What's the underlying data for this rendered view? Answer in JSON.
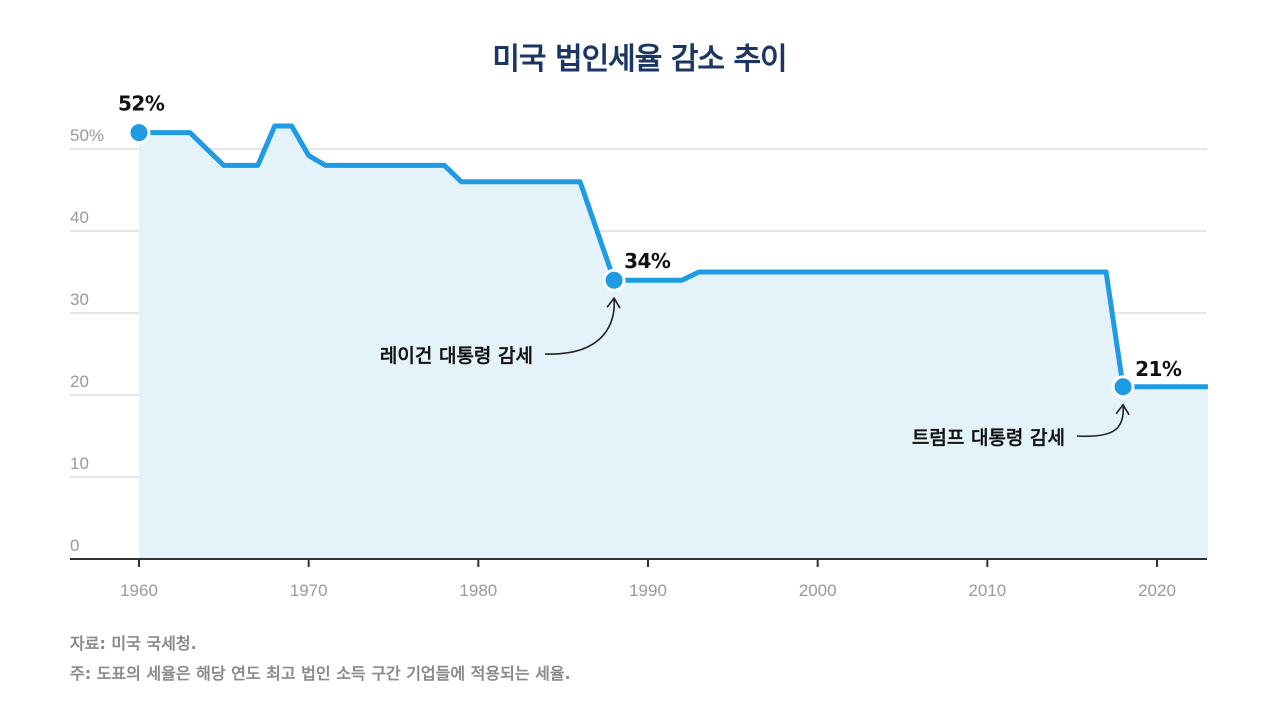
{
  "chart_data": {
    "type": "area",
    "title": "미국 법인세율 감소 추이",
    "xlabel": "",
    "ylabel": "",
    "xlim": [
      1960,
      2023
    ],
    "ylim": [
      0,
      50
    ],
    "y_ticks": [
      "0",
      "10",
      "20",
      "30",
      "40",
      "50%"
    ],
    "x_ticks": [
      "1960",
      "1970",
      "1980",
      "1990",
      "2000",
      "2010",
      "2020"
    ],
    "grid": true,
    "series": [
      {
        "x": [
          1960,
          1963,
          1965,
          1967,
          1968,
          1969,
          1970,
          1971,
          1978,
          1979,
          1986,
          1987,
          1988,
          1992,
          1993,
          2017,
          2018,
          2023
        ],
        "values": [
          52,
          52,
          48,
          48,
          52.8,
          52.8,
          49.2,
          48,
          48,
          46,
          46,
          40,
          34,
          34,
          35,
          35,
          21,
          21
        ]
      }
    ],
    "highlights": [
      {
        "x": 1960,
        "y": 52,
        "label": "52%"
      },
      {
        "x": 1988,
        "y": 34,
        "label": "34%"
      },
      {
        "x": 2018,
        "y": 21,
        "label": "21%"
      }
    ],
    "annotations": [
      {
        "text": "레이건 대통령 감세",
        "x": 1988
      },
      {
        "text": "트럼프 대통령 감세",
        "x": 2018
      }
    ],
    "colors": {
      "line": "#1f9be3",
      "area": "#e4f2f9",
      "title": "#1b3665",
      "grid": "#dddddd",
      "axis": "#333333"
    }
  },
  "footer": {
    "source": "자료: 미국 국세청.",
    "note": "주: 도표의 세율은 해당 연도 최고 법인 소득 구간 기업들에 적용되는 세율."
  }
}
